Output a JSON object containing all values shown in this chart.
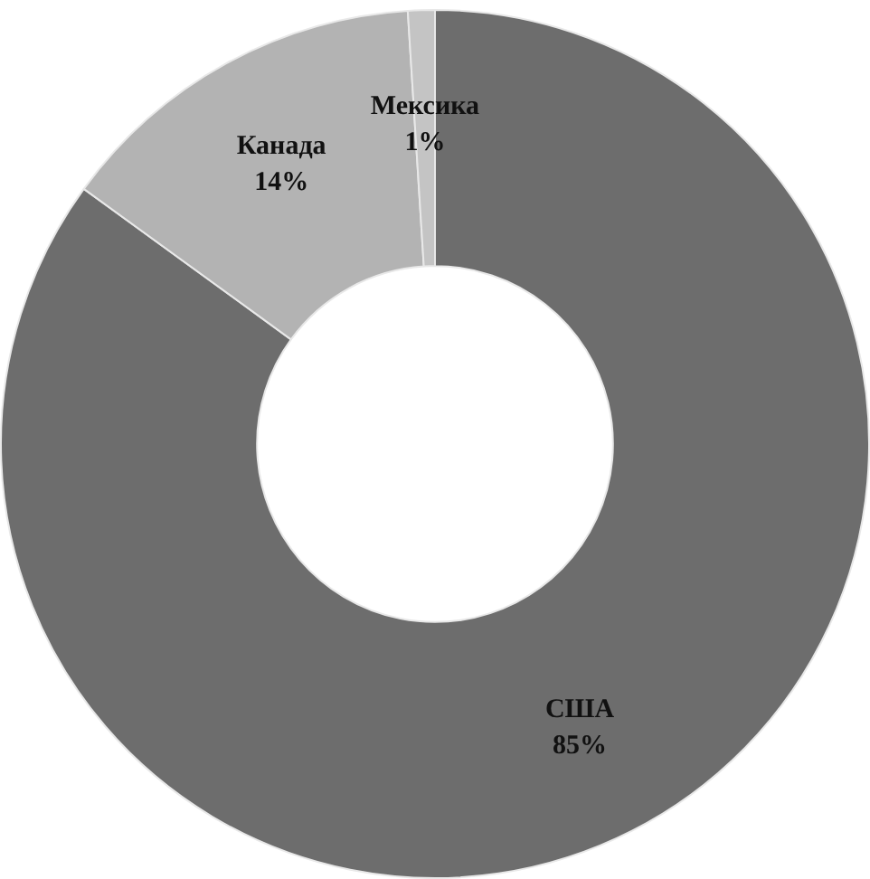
{
  "chart_data": {
    "type": "donut",
    "categories": [
      "США",
      "Канада",
      "Мексика"
    ],
    "values": [
      85,
      14,
      1
    ],
    "value_labels": [
      "85%",
      "14%",
      "1%"
    ],
    "colors": [
      "#6d6d6d",
      "#b3b3b3",
      "#c4c4c4"
    ],
    "legend": false
  }
}
